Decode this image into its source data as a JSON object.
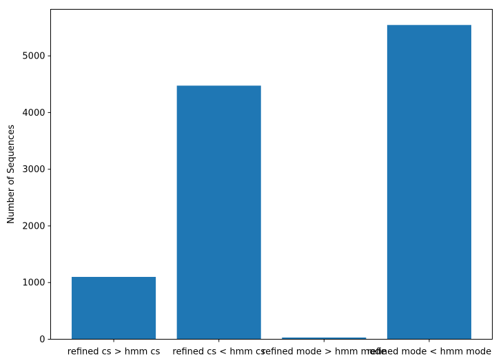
{
  "chart_data": {
    "type": "bar",
    "title": "",
    "xlabel": "",
    "ylabel": "Number of Sequences",
    "categories": [
      "refined cs > hmm cs",
      "refined cs < hmm cs",
      "refined mode > hmm mode",
      "refined mode < hmm mode"
    ],
    "values": [
      1100,
      4475,
      30,
      5545
    ],
    "ylim": [
      0,
      5822
    ],
    "yticks": [
      0,
      1000,
      2000,
      3000,
      4000,
      5000
    ],
    "grid": false,
    "legend": "none",
    "bar_color": "#1f77b4"
  }
}
